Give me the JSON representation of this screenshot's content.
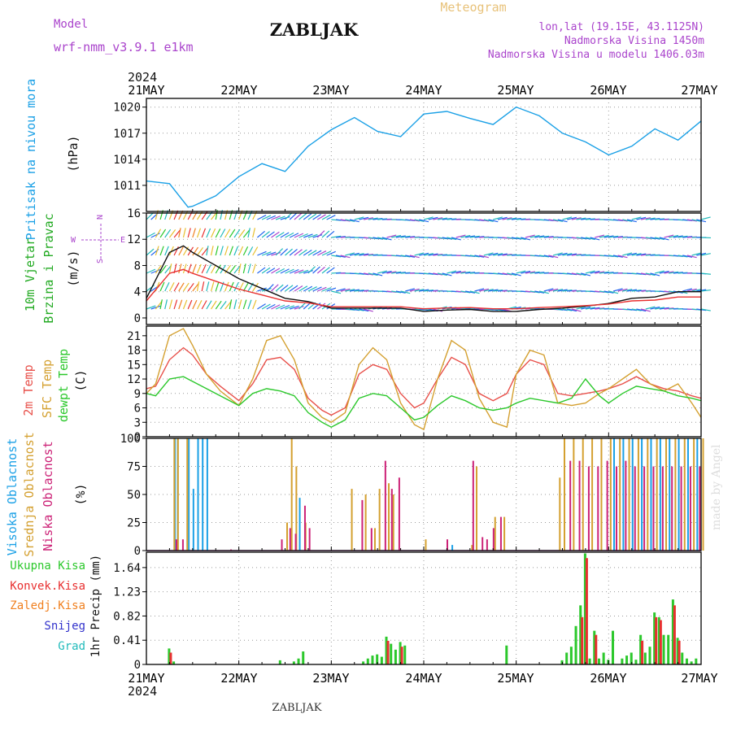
{
  "header": {
    "model_label": "Model",
    "model_name": "wrf-nmm_v3.9.1  e1km",
    "title": "ZABLJAK",
    "meteogram": "Meteogram",
    "location": "lon,lat (19.15E, 43.1125N)",
    "elevation": "Nadmorska Visina 1450m",
    "model_elevation": "Nadmorska Visina u modelu 1406.03m",
    "footer_title": "ZABLJAK",
    "credit": "made by Angel"
  },
  "time_axis": {
    "year": "2024",
    "labels": [
      "21MAY",
      "22MAY",
      "23MAY",
      "24MAY",
      "25MAY",
      "26MAY",
      "27MAY"
    ]
  },
  "colors": {
    "pressure": "#1aa0e6",
    "temp2m": "#e8504a",
    "sfc": "#d4a030",
    "dewpt": "#2cc82c",
    "high_cloud": "#1aa0e6",
    "mid_cloud": "#d4a030",
    "low_cloud": "#cc2277",
    "rain_total": "#2cc82c",
    "rain_conv": "#e83030",
    "rain_frz": "#f08020",
    "snow": "#3333cc",
    "graupel": "#22bbbb",
    "wind_label": "#22aa22",
    "purple": "#aa44cc"
  },
  "chart_data": [
    {
      "type": "line",
      "panel": "pressure",
      "ylabel": "Pritisak na nivou mora",
      "unit": "(hPa)",
      "ylim": [
        1008,
        1021
      ],
      "yticks": [
        "1020",
        "1017",
        "1014",
        "1011"
      ],
      "ytick_values": [
        1020,
        1017,
        1014,
        1011
      ],
      "x_days": [
        0,
        0.25,
        0.45,
        0.5,
        0.75,
        1.0,
        1.25,
        1.5,
        1.75,
        2.0,
        2.25,
        2.5,
        2.75,
        3.0,
        3.25,
        3.5,
        3.75,
        4.0,
        4.25,
        4.5,
        4.75,
        5.0,
        5.25,
        5.5,
        5.75,
        6.0
      ],
      "series": [
        {
          "values": [
            1011.5,
            1011.2,
            1008.5,
            1008.6,
            1009.8,
            1012.0,
            1013.5,
            1012.6,
            1015.5,
            1017.4,
            1018.8,
            1017.2,
            1016.6,
            1019.2,
            1019.5,
            1018.7,
            1018.0,
            1020.0,
            1019.0,
            1017.0,
            1016.0,
            1014.5,
            1015.5,
            1017.5,
            1016.2,
            1018.4
          ]
        }
      ]
    },
    {
      "type": "line",
      "panel": "wind",
      "ylabel": "10m Vjetar",
      "ylabel2": "Brzina i Pravac",
      "unit": "(m/s)",
      "ylim": [
        -1,
        16
      ],
      "yticks": [
        "16",
        "12",
        "8",
        "4",
        "0"
      ],
      "ytick_values": [
        16,
        12,
        8,
        4,
        0
      ],
      "compass": {
        "n": "N",
        "w": "W",
        "e": "E",
        "s": "S"
      },
      "x_days": [
        0,
        0.25,
        0.4,
        0.5,
        0.75,
        1.0,
        1.25,
        1.5,
        1.75,
        2.0,
        2.25,
        2.5,
        2.75,
        3.0,
        3.25,
        3.5,
        3.75,
        4.0,
        4.25,
        4.5,
        4.75,
        5.0,
        5.25,
        5.5,
        5.75,
        6.0
      ],
      "series": [
        {
          "name": "",
          "values": [
            3,
            10,
            11,
            10,
            8,
            6,
            4.5,
            3,
            2.5,
            1.5,
            1.5,
            1.5,
            1.5,
            1,
            1.2,
            1.3,
            1,
            1,
            1.3,
            1.5,
            1.8,
            2.2,
            3,
            3.2,
            4,
            4
          ]
        }
      ]
    },
    {
      "type": "line",
      "panel": "temperature",
      "ylabels": [
        "2m Temp",
        "SFC Temp",
        "dewpt Temp"
      ],
      "unit": "(C)",
      "ylim": [
        0,
        23
      ],
      "yticks": [
        "21",
        "18",
        "15",
        "12",
        "9",
        "6",
        "3",
        "0"
      ],
      "ytick_values": [
        21,
        18,
        15,
        12,
        9,
        6,
        3,
        0
      ],
      "x_days": [
        0,
        0.1,
        0.25,
        0.4,
        0.5,
        0.65,
        0.8,
        1.0,
        1.15,
        1.3,
        1.45,
        1.6,
        1.75,
        1.9,
        2.0,
        2.15,
        2.3,
        2.45,
        2.6,
        2.75,
        2.9,
        3.0,
        3.15,
        3.3,
        3.45,
        3.6,
        3.75,
        3.9,
        4.0,
        4.15,
        4.3,
        4.45,
        4.6,
        4.75,
        4.9,
        5.0,
        5.15,
        5.3,
        5.45,
        5.6,
        5.75,
        5.9,
        6.0
      ],
      "series": [
        {
          "name": "2m Temp",
          "values": [
            10,
            10.5,
            16,
            18.5,
            17,
            13,
            10.5,
            7.5,
            11,
            16,
            16.5,
            14,
            8,
            5.5,
            4.5,
            6,
            13,
            15,
            14,
            9,
            6,
            7,
            12,
            16.5,
            15,
            9,
            7.5,
            9,
            13,
            16,
            15,
            9,
            8.5,
            9,
            9.5,
            10,
            11,
            12.5,
            11,
            10,
            9.5,
            8.5,
            8
          ]
        },
        {
          "name": "SFC Temp",
          "values": [
            9,
            11,
            21,
            22.5,
            19,
            13,
            9.5,
            6.5,
            12,
            20,
            21,
            16,
            7,
            4,
            3,
            5,
            15,
            18.5,
            16,
            7,
            2.5,
            1.5,
            12,
            20,
            18,
            8,
            3,
            2,
            13,
            18,
            17,
            7,
            6.5,
            7,
            9,
            10,
            12,
            14,
            11,
            9.5,
            11,
            7,
            4
          ]
        },
        {
          "name": "dewpt Temp",
          "values": [
            9,
            8.5,
            12,
            12.5,
            11.5,
            10,
            8.5,
            6.5,
            9,
            10,
            9.5,
            8.5,
            5,
            3,
            2,
            3.5,
            8,
            9,
            8.5,
            6,
            3.5,
            4,
            6.5,
            8.5,
            7.5,
            6,
            5.5,
            6,
            7,
            8,
            7.5,
            7,
            8,
            12,
            8.5,
            7,
            9,
            10.5,
            10,
            9.5,
            8.5,
            8,
            7.5
          ]
        }
      ]
    },
    {
      "type": "bar",
      "panel": "clouds",
      "ylabels": [
        "Visoka Oblacnost",
        "Srednja Oblacnost",
        "Niska Oblacnost"
      ],
      "unit": "(%)",
      "ylim": [
        0,
        100
      ],
      "yticks": [
        "100",
        "75",
        "50",
        "25",
        "0"
      ],
      "ytick_values": [
        100,
        75,
        50,
        25,
        0
      ],
      "series": [
        {
          "name": "Visoka Oblacnost",
          "points": [
            [
              0.3,
              100
            ],
            [
              0.33,
              100
            ],
            [
              0.45,
              100
            ],
            [
              0.5,
              55
            ],
            [
              0.55,
              100
            ],
            [
              0.6,
              100
            ],
            [
              0.65,
              100
            ],
            [
              1.65,
              47
            ],
            [
              3.3,
              5
            ],
            [
              5.05,
              100
            ],
            [
              5.15,
              100
            ],
            [
              5.25,
              100
            ],
            [
              5.35,
              100
            ],
            [
              5.45,
              100
            ],
            [
              5.55,
              100
            ],
            [
              5.65,
              100
            ],
            [
              5.75,
              100
            ],
            [
              5.85,
              100
            ],
            [
              5.95,
              100
            ]
          ]
        },
        {
          "name": "Srednja Oblacnost",
          "points": [
            [
              0.28,
              100
            ],
            [
              0.32,
              100
            ],
            [
              0.42,
              100
            ],
            [
              1.5,
              25
            ],
            [
              1.55,
              100
            ],
            [
              1.6,
              75
            ],
            [
              1.7,
              25
            ],
            [
              2.2,
              55
            ],
            [
              2.35,
              50
            ],
            [
              2.45,
              20
            ],
            [
              2.5,
              55
            ],
            [
              2.6,
              60
            ],
            [
              2.65,
              50
            ],
            [
              3.0,
              10
            ],
            [
              3.5,
              5
            ],
            [
              3.55,
              75
            ],
            [
              3.75,
              30
            ],
            [
              3.85,
              30
            ],
            [
              4.45,
              65
            ],
            [
              4.5,
              100
            ],
            [
              4.6,
              100
            ],
            [
              4.7,
              100
            ],
            [
              4.8,
              100
            ],
            [
              4.9,
              100
            ],
            [
              5.0,
              100
            ],
            [
              5.1,
              100
            ],
            [
              5.2,
              100
            ],
            [
              5.3,
              100
            ],
            [
              5.4,
              100
            ],
            [
              5.5,
              100
            ],
            [
              5.6,
              100
            ],
            [
              5.7,
              100
            ],
            [
              5.8,
              100
            ],
            [
              5.9,
              100
            ],
            [
              6.0,
              100
            ]
          ]
        },
        {
          "name": "Niska Oblacnost",
          "points": [
            [
              0.29,
              10
            ],
            [
              0.36,
              10
            ],
            [
              0.88,
              1
            ],
            [
              1.43,
              10
            ],
            [
              1.52,
              20
            ],
            [
              1.58,
              15
            ],
            [
              1.68,
              40
            ],
            [
              1.73,
              20
            ],
            [
              2.3,
              45
            ],
            [
              2.4,
              20
            ],
            [
              2.55,
              80
            ],
            [
              2.62,
              55
            ],
            [
              2.7,
              65
            ],
            [
              3.22,
              10
            ],
            [
              3.5,
              80
            ],
            [
              3.6,
              12
            ],
            [
              3.65,
              10
            ],
            [
              3.72,
              20
            ],
            [
              3.8,
              30
            ],
            [
              4.55,
              80
            ],
            [
              4.65,
              80
            ],
            [
              4.75,
              75
            ],
            [
              4.85,
              75
            ],
            [
              4.95,
              80
            ],
            [
              5.05,
              75
            ],
            [
              5.15,
              80
            ],
            [
              5.25,
              75
            ],
            [
              5.35,
              75
            ],
            [
              5.45,
              75
            ],
            [
              5.55,
              75
            ],
            [
              5.65,
              75
            ],
            [
              5.75,
              75
            ],
            [
              5.85,
              75
            ],
            [
              5.95,
              75
            ]
          ]
        }
      ]
    },
    {
      "type": "bar",
      "panel": "precipitation",
      "legend": [
        "Ukupna Kisa",
        "Konvek.Kisa",
        "Zaledj.Kisa",
        "Snijeg",
        "Grad"
      ],
      "ylabel": "1hr Precip (mm)",
      "ylim": [
        0,
        1.9
      ],
      "yticks": [
        "1.64",
        "1.23",
        "0.82",
        "0.41",
        "0"
      ],
      "ytick_values": [
        1.64,
        1.23,
        0.82,
        0.41,
        0
      ],
      "series": [
        {
          "name": "Ukupna Kisa",
          "points": [
            [
              0.25,
              0.27
            ],
            [
              0.3,
              0.05
            ],
            [
              1.45,
              0.07
            ],
            [
              1.6,
              0.05
            ],
            [
              1.65,
              0.1
            ],
            [
              1.7,
              0.22
            ],
            [
              2.35,
              0.05
            ],
            [
              2.4,
              0.1
            ],
            [
              2.45,
              0.15
            ],
            [
              2.5,
              0.17
            ],
            [
              2.55,
              0.13
            ],
            [
              2.6,
              0.47
            ],
            [
              2.65,
              0.35
            ],
            [
              2.7,
              0.25
            ],
            [
              2.75,
              0.38
            ],
            [
              2.8,
              0.32
            ],
            [
              3.9,
              0.32
            ],
            [
              4.5,
              0.07
            ],
            [
              4.55,
              0.2
            ],
            [
              4.6,
              0.3
            ],
            [
              4.65,
              0.65
            ],
            [
              4.7,
              1.0
            ],
            [
              4.75,
              1.88
            ],
            [
              4.8,
              0.1
            ],
            [
              4.85,
              0.57
            ],
            [
              4.9,
              0.1
            ],
            [
              4.95,
              0.2
            ],
            [
              5.0,
              0.08
            ],
            [
              5.05,
              0.57
            ],
            [
              5.15,
              0.1
            ],
            [
              5.2,
              0.15
            ],
            [
              5.25,
              0.2
            ],
            [
              5.3,
              0.08
            ],
            [
              5.35,
              0.5
            ],
            [
              5.4,
              0.2
            ],
            [
              5.45,
              0.3
            ],
            [
              5.5,
              0.88
            ],
            [
              5.55,
              0.8
            ],
            [
              5.6,
              0.5
            ],
            [
              5.65,
              0.5
            ],
            [
              5.7,
              1.1
            ],
            [
              5.75,
              0.45
            ],
            [
              5.8,
              0.2
            ],
            [
              5.85,
              0.1
            ],
            [
              5.9,
              0.05
            ],
            [
              5.95,
              0.1
            ]
          ]
        },
        {
          "name": "Konvek.Kisa",
          "points": [
            [
              0.25,
              0.2
            ],
            [
              2.6,
              0.4
            ],
            [
              2.75,
              0.3
            ],
            [
              4.7,
              0.8
            ],
            [
              4.75,
              1.8
            ],
            [
              4.85,
              0.5
            ],
            [
              5.35,
              0.4
            ],
            [
              5.5,
              0.8
            ],
            [
              5.55,
              0.75
            ],
            [
              5.7,
              1.0
            ],
            [
              5.75,
              0.4
            ]
          ]
        }
      ]
    }
  ]
}
